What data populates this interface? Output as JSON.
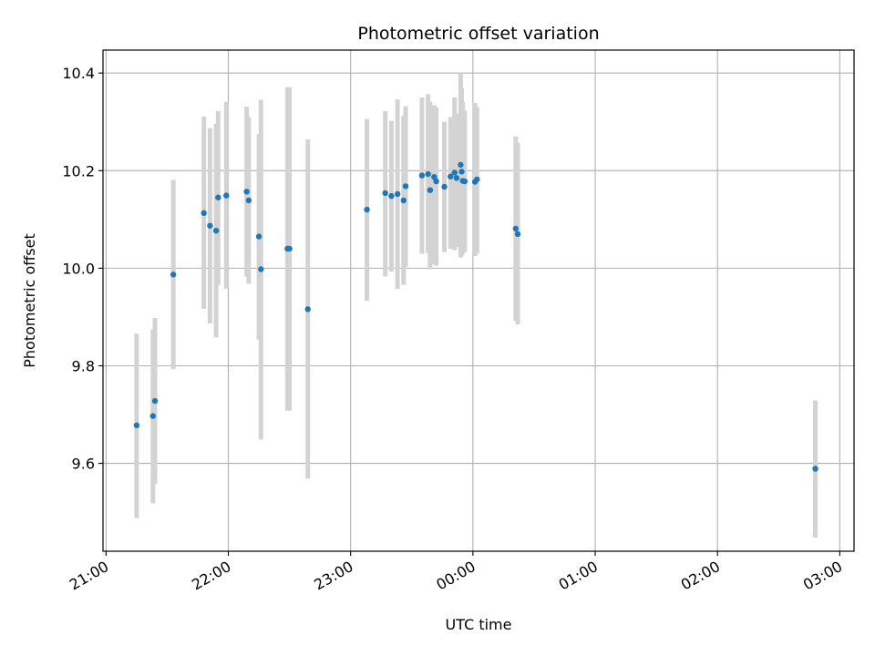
{
  "chart_data": {
    "type": "scatter",
    "title": "Photometric offset variation",
    "xlabel": "UTC time",
    "ylabel": "Photometric offset",
    "x_tick_labels": [
      "21:00",
      "22:00",
      "23:00",
      "00:00",
      "01:00",
      "02:00",
      "03:00"
    ],
    "x_tick_minutes": [
      0,
      60,
      120,
      180,
      240,
      300,
      360
    ],
    "y_ticks": [
      9.6,
      9.8,
      10.0,
      10.2,
      10.4
    ],
    "y_tick_labels": [
      "9.6",
      "9.8",
      "10.0",
      "10.2",
      "10.4"
    ],
    "xlim_minutes": [
      -1.5,
      367
    ],
    "ylim": [
      9.42,
      10.447
    ],
    "grid": true,
    "point_color": "#1f77b4",
    "errorbar_color": "#d3d3d3",
    "points": [
      {
        "t": 15,
        "y": 9.678,
        "lo": 9.488,
        "hi": 9.866
      },
      {
        "t": 23,
        "y": 9.697,
        "lo": 9.518,
        "hi": 9.875
      },
      {
        "t": 24,
        "y": 9.728,
        "lo": 9.558,
        "hi": 9.898
      },
      {
        "t": 33,
        "y": 9.987,
        "lo": 9.793,
        "hi": 10.181
      },
      {
        "t": 48,
        "y": 10.113,
        "lo": 9.917,
        "hi": 10.311
      },
      {
        "t": 51,
        "y": 10.087,
        "lo": 9.887,
        "hi": 10.287
      },
      {
        "t": 54,
        "y": 10.077,
        "lo": 9.858,
        "hi": 10.296
      },
      {
        "t": 55,
        "y": 10.145,
        "lo": 9.966,
        "hi": 10.322
      },
      {
        "t": 59,
        "y": 10.149,
        "lo": 9.958,
        "hi": 10.341
      },
      {
        "t": 69,
        "y": 10.157,
        "lo": 9.983,
        "hi": 10.331
      },
      {
        "t": 70,
        "y": 10.139,
        "lo": 9.968,
        "hi": 10.31
      },
      {
        "t": 75,
        "y": 10.065,
        "lo": 9.854,
        "hi": 10.275
      },
      {
        "t": 76,
        "y": 9.998,
        "lo": 9.649,
        "hi": 10.345
      },
      {
        "t": 89,
        "y": 10.04,
        "lo": 9.708,
        "hi": 10.371
      },
      {
        "t": 90,
        "y": 10.04,
        "lo": 9.708,
        "hi": 10.371
      },
      {
        "t": 99,
        "y": 9.916,
        "lo": 9.569,
        "hi": 10.264
      },
      {
        "t": 128,
        "y": 10.12,
        "lo": 9.933,
        "hi": 10.306
      },
      {
        "t": 137,
        "y": 10.154,
        "lo": 9.983,
        "hi": 10.322
      },
      {
        "t": 140,
        "y": 10.148,
        "lo": 9.993,
        "hi": 10.302
      },
      {
        "t": 143,
        "y": 10.152,
        "lo": 9.958,
        "hi": 10.346
      },
      {
        "t": 146,
        "y": 10.139,
        "lo": 9.966,
        "hi": 10.312
      },
      {
        "t": 147,
        "y": 10.168,
        "lo": 10.003,
        "hi": 10.332
      },
      {
        "t": 155,
        "y": 10.19,
        "lo": 10.03,
        "hi": 10.35
      },
      {
        "t": 158,
        "y": 10.193,
        "lo": 10.031,
        "hi": 10.357
      },
      {
        "t": 159,
        "y": 10.16,
        "lo": 9.998,
        "hi": 10.341
      },
      {
        "t": 161,
        "y": 10.187,
        "lo": 10.008,
        "hi": 10.334
      },
      {
        "t": 162,
        "y": 10.178,
        "lo": 10.005,
        "hi": 10.33
      },
      {
        "t": 166,
        "y": 10.167,
        "lo": 10.033,
        "hi": 10.3
      },
      {
        "t": 169,
        "y": 10.188,
        "lo": 10.04,
        "hi": 10.31
      },
      {
        "t": 171,
        "y": 10.196,
        "lo": 10.037,
        "hi": 10.35
      },
      {
        "t": 172,
        "y": 10.185,
        "lo": 10.044,
        "hi": 10.317
      },
      {
        "t": 174,
        "y": 10.212,
        "lo": 10.022,
        "hi": 10.4
      },
      {
        "t": 174.5,
        "y": 10.198,
        "lo": 10.026,
        "hi": 10.37
      },
      {
        "t": 175,
        "y": 10.179,
        "lo": 10.03,
        "hi": 10.34
      },
      {
        "t": 176,
        "y": 10.178,
        "lo": 10.033,
        "hi": 10.323
      },
      {
        "t": 181,
        "y": 10.177,
        "lo": 10.025,
        "hi": 10.339
      },
      {
        "t": 182,
        "y": 10.182,
        "lo": 10.03,
        "hi": 10.33
      },
      {
        "t": 201,
        "y": 10.081,
        "lo": 9.892,
        "hi": 10.27
      },
      {
        "t": 202,
        "y": 10.07,
        "lo": 9.885,
        "hi": 10.257
      },
      {
        "t": 348,
        "y": 9.589,
        "lo": 9.448,
        "hi": 9.729
      }
    ]
  }
}
